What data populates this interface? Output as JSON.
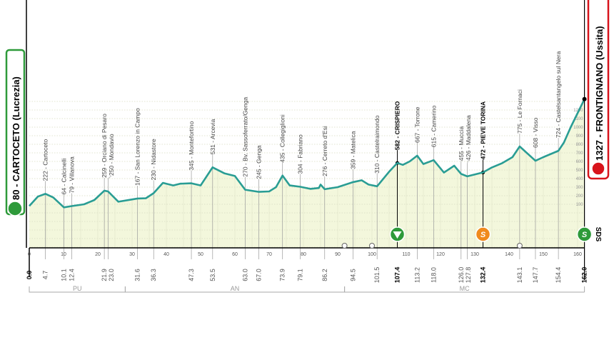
{
  "chart_data": {
    "type": "area",
    "xlabel": "",
    "ylabel": "",
    "xlim": [
      0,
      162
    ],
    "ylim": [
      0,
      1200
    ],
    "x_ticks": [
      0,
      10,
      20,
      30,
      40,
      50,
      60,
      70,
      80,
      90,
      100,
      110,
      120,
      130,
      140,
      150,
      160
    ],
    "y_ticks": [
      100,
      200,
      300,
      400,
      500,
      600,
      700,
      800,
      900,
      1000,
      1100,
      1200
    ],
    "grid": true,
    "line_color": "#2a9d94",
    "fill_color": "#f3f7dc",
    "profile": [
      [
        0,
        80
      ],
      [
        2.5,
        190
      ],
      [
        4.7,
        222
      ],
      [
        7,
        180
      ],
      [
        10.1,
        64
      ],
      [
        12.4,
        79
      ],
      [
        16,
        100
      ],
      [
        19,
        150
      ],
      [
        21.9,
        259
      ],
      [
        23,
        250
      ],
      [
        26,
        130
      ],
      [
        31.6,
        167
      ],
      [
        34,
        170
      ],
      [
        36.3,
        230
      ],
      [
        39,
        350
      ],
      [
        42,
        320
      ],
      [
        44,
        340
      ],
      [
        47.3,
        345
      ],
      [
        50,
        320
      ],
      [
        53.5,
        531
      ],
      [
        57,
        460
      ],
      [
        60,
        430
      ],
      [
        63,
        270
      ],
      [
        67,
        245
      ],
      [
        70,
        250
      ],
      [
        72,
        300
      ],
      [
        73.9,
        435
      ],
      [
        76,
        320
      ],
      [
        79.1,
        304
      ],
      [
        82,
        280
      ],
      [
        84.5,
        290
      ],
      [
        85,
        330
      ],
      [
        86.2,
        276
      ],
      [
        90,
        300
      ],
      [
        94.5,
        359
      ],
      [
        97,
        380
      ],
      [
        99,
        330
      ],
      [
        101.5,
        310
      ],
      [
        105,
        480
      ],
      [
        107.4,
        582
      ],
      [
        109,
        560
      ],
      [
        111,
        600
      ],
      [
        113.2,
        667
      ],
      [
        115,
        570
      ],
      [
        118,
        615
      ],
      [
        121,
        470
      ],
      [
        124,
        550
      ],
      [
        126,
        455
      ],
      [
        127.8,
        426
      ],
      [
        132.4,
        472
      ],
      [
        135,
        530
      ],
      [
        138,
        580
      ],
      [
        141,
        650
      ],
      [
        143.1,
        775
      ],
      [
        147.7,
        608
      ],
      [
        150,
        650
      ],
      [
        154.4,
        724
      ],
      [
        156,
        820
      ],
      [
        158,
        1000
      ],
      [
        162,
        1327
      ]
    ],
    "locations": [
      {
        "km": "4.7",
        "label": "222 - Cartoceto",
        "bold": false
      },
      {
        "km": "10.1",
        "label": "64 - Calcinelli",
        "bold": false
      },
      {
        "km": "12.4",
        "label": "79 - Villanova",
        "bold": false
      },
      {
        "km": "21.9",
        "label": "259 - Orciano di Pesaro",
        "bold": false
      },
      {
        "km": "23.0",
        "label": "250 - Mondavio",
        "bold": false
      },
      {
        "km": "31.6",
        "label": "167 - San Lorenzo in Campo",
        "bold": false
      },
      {
        "km": "36.3",
        "label": "230 - Nidastore",
        "bold": false
      },
      {
        "km": "47.3",
        "label": "345 - Montefortino",
        "bold": false
      },
      {
        "km": "53.5",
        "label": "531 - Arcevia",
        "bold": false
      },
      {
        "km": "63.0",
        "label": "270 - Bv. Sassoferrato/Genga",
        "bold": false
      },
      {
        "km": "67.0",
        "label": "245 - Genga",
        "bold": false
      },
      {
        "km": "73.9",
        "label": "435 - Collegiglioni",
        "bold": false
      },
      {
        "km": "79.1",
        "label": "304 - Fabriano",
        "bold": false
      },
      {
        "km": "86.2",
        "label": "276 - Cerreto d'Esi",
        "bold": false
      },
      {
        "km": "94.5",
        "label": "359 - Matelica",
        "bold": false
      },
      {
        "km": "101.5",
        "label": "310 - Castelraimondo",
        "bold": false
      },
      {
        "km": "107.4",
        "label": "582 - CRISPIERO",
        "bold": true
      },
      {
        "km": "113.2",
        "label": "667 - Torrone",
        "bold": false
      },
      {
        "km": "118.0",
        "label": "615 - Camerino",
        "bold": false
      },
      {
        "km": "126.0",
        "label": "455 - Muccia",
        "bold": false
      },
      {
        "km": "127.8",
        "label": "426 - Maddalena",
        "bold": false
      },
      {
        "km": "132.4",
        "label": "472 - PIEVE TORINA",
        "bold": true
      },
      {
        "km": "143.1",
        "label": "775 - Le Fornaci",
        "bold": false
      },
      {
        "km": "147.7",
        "label": "608 - Visso",
        "bold": false
      },
      {
        "km": "154.4",
        "label": "724 - Castelsantangelo sul Nera",
        "bold": false
      }
    ],
    "start_km": "0.0",
    "finish_km": "162.0",
    "regions": [
      {
        "label": "PU",
        "from": 0,
        "to": 28
      },
      {
        "label": "AN",
        "from": 28,
        "to": 92
      },
      {
        "label": "MC",
        "from": 92,
        "to": 162
      }
    ],
    "markers": [
      {
        "km": 107.4,
        "type": "kom-icon",
        "color": "#2e9a3a"
      },
      {
        "km": 132.4,
        "type": "sprint-icon",
        "color": "#f08a1c",
        "text": "S"
      },
      {
        "km": 162,
        "type": "finish-kom-sprint-icon",
        "color": "#2e9a3a",
        "text": "S"
      }
    ],
    "small_icons": [
      {
        "km": 92,
        "type": "feed-zone-icon"
      },
      {
        "km": 100,
        "type": "feed-zone-icon"
      },
      {
        "km": 143.1,
        "type": "point-icon"
      }
    ]
  },
  "start": {
    "label": "80 - CARTOCETO (Lucrezia)",
    "color": "#2e9a3a"
  },
  "finish": {
    "label": "1327 - FRONTIGNANO (Ussita)",
    "color": "#d8141c"
  },
  "finish_tag": "SDS"
}
